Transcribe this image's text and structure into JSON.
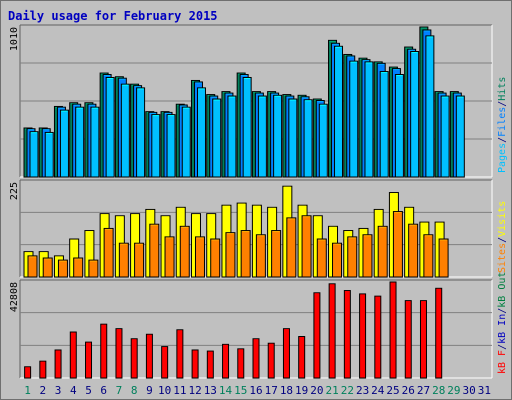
{
  "title": "Daily usage for February 2015",
  "colors": {
    "hits": "#00805c",
    "files": "#0080ff",
    "pages": "#00c0ff",
    "visits": "#ffff00",
    "sites": "#ff8000",
    "kbin": "#0000c0",
    "kbout": "#008040",
    "kbf": "#ff0000",
    "background": "#c0c0c0",
    "weekend_day_label": "#00805c",
    "weekday_label": "#000080",
    "title_color": "#0000c0"
  },
  "chart_data": [
    {
      "type": "bar",
      "name": "hits-files-pages",
      "ylim": [
        0,
        1010
      ],
      "y_tick_label": "1010",
      "grid": true,
      "right_label": [
        {
          "text": "Pages",
          "color_key": "pages"
        },
        {
          "text": "/",
          "color_key": "weekday_label"
        },
        {
          "text": "Files",
          "color_key": "files"
        },
        {
          "text": "/",
          "color_key": "weekday_label"
        },
        {
          "text": "Hits",
          "color_key": "hits"
        }
      ],
      "series": [
        {
          "name": "Hits",
          "color_key": "hits",
          "values": [
            330,
            330,
            475,
            500,
            500,
            700,
            675,
            625,
            440,
            440,
            490,
            650,
            555,
            575,
            700,
            575,
            575,
            555,
            550,
            525,
            920,
            825,
            800,
            775,
            740,
            875,
            1010,
            575,
            575,
            0,
            0
          ]
        },
        {
          "name": "Files",
          "color_key": "files",
          "values": [
            325,
            325,
            470,
            490,
            490,
            690,
            665,
            615,
            435,
            435,
            485,
            640,
            545,
            565,
            690,
            565,
            565,
            545,
            540,
            515,
            900,
            815,
            790,
            765,
            730,
            860,
            990,
            565,
            565,
            0,
            0
          ]
        },
        {
          "name": "Pages",
          "color_key": "pages",
          "values": [
            305,
            300,
            450,
            470,
            470,
            670,
            625,
            600,
            420,
            420,
            470,
            600,
            525,
            545,
            670,
            545,
            550,
            525,
            520,
            490,
            880,
            780,
            775,
            710,
            690,
            845,
            950,
            545,
            545,
            0,
            0
          ]
        }
      ]
    },
    {
      "type": "bar",
      "name": "visits-sites",
      "ylim": [
        0,
        225
      ],
      "y_tick_label": "225",
      "grid": true,
      "right_label": [
        {
          "text": "Sites",
          "color_key": "sites"
        },
        {
          "text": "/",
          "color_key": "weekday_label"
        },
        {
          "text": "Visits",
          "color_key": "visits"
        }
      ],
      "series": [
        {
          "name": "Visits",
          "color_key": "visits",
          "values": [
            60,
            60,
            50,
            90,
            110,
            150,
            145,
            150,
            160,
            145,
            165,
            150,
            150,
            170,
            175,
            170,
            165,
            215,
            170,
            145,
            120,
            110,
            115,
            160,
            200,
            165,
            130,
            130,
            0,
            0,
            0
          ]
        },
        {
          "name": "Sites",
          "color_key": "sites",
          "values": [
            50,
            45,
            40,
            45,
            40,
            115,
            80,
            80,
            125,
            95,
            120,
            95,
            90,
            105,
            110,
            100,
            110,
            140,
            145,
            90,
            80,
            95,
            100,
            120,
            155,
            125,
            100,
            90,
            0,
            0,
            0
          ]
        }
      ]
    },
    {
      "type": "bar",
      "name": "kbytes",
      "ylim": [
        0,
        42808
      ],
      "y_tick_label": "42808",
      "grid": true,
      "right_label": [
        {
          "text": "kB F",
          "color_key": "kbf"
        },
        {
          "text": "/",
          "color_key": "weekday_label"
        },
        {
          "text": "kB In",
          "color_key": "kbin"
        },
        {
          "text": "/",
          "color_key": "weekday_label"
        },
        {
          "text": "kB Out",
          "color_key": "kbout"
        }
      ],
      "series": [
        {
          "name": "kB F",
          "color_key": "kbf",
          "values": [
            5000,
            7500,
            12500,
            20500,
            16000,
            24000,
            22000,
            17500,
            19500,
            14000,
            21500,
            12500,
            12000,
            15000,
            13000,
            17500,
            15500,
            22000,
            18500,
            38000,
            42000,
            39000,
            37500,
            36500,
            42808,
            34500,
            34500,
            40000,
            0,
            0,
            0
          ]
        }
      ]
    }
  ],
  "x_axis": {
    "days": [
      {
        "label": "1",
        "weekend": true
      },
      {
        "label": "2",
        "weekend": false
      },
      {
        "label": "3",
        "weekend": false
      },
      {
        "label": "4",
        "weekend": false
      },
      {
        "label": "5",
        "weekend": false
      },
      {
        "label": "6",
        "weekend": false
      },
      {
        "label": "7",
        "weekend": true
      },
      {
        "label": "8",
        "weekend": true
      },
      {
        "label": "9",
        "weekend": false
      },
      {
        "label": "10",
        "weekend": false
      },
      {
        "label": "11",
        "weekend": false
      },
      {
        "label": "12",
        "weekend": false
      },
      {
        "label": "13",
        "weekend": false
      },
      {
        "label": "14",
        "weekend": true
      },
      {
        "label": "15",
        "weekend": true
      },
      {
        "label": "16",
        "weekend": false
      },
      {
        "label": "17",
        "weekend": false
      },
      {
        "label": "18",
        "weekend": false
      },
      {
        "label": "19",
        "weekend": false
      },
      {
        "label": "20",
        "weekend": false
      },
      {
        "label": "21",
        "weekend": true
      },
      {
        "label": "22",
        "weekend": true
      },
      {
        "label": "23",
        "weekend": false
      },
      {
        "label": "24",
        "weekend": false
      },
      {
        "label": "25",
        "weekend": false
      },
      {
        "label": "26",
        "weekend": false
      },
      {
        "label": "27",
        "weekend": false
      },
      {
        "label": "28",
        "weekend": true
      },
      {
        "label": "29",
        "weekend": true
      },
      {
        "label": "30",
        "weekend": false
      },
      {
        "label": "31",
        "weekend": false
      }
    ]
  }
}
